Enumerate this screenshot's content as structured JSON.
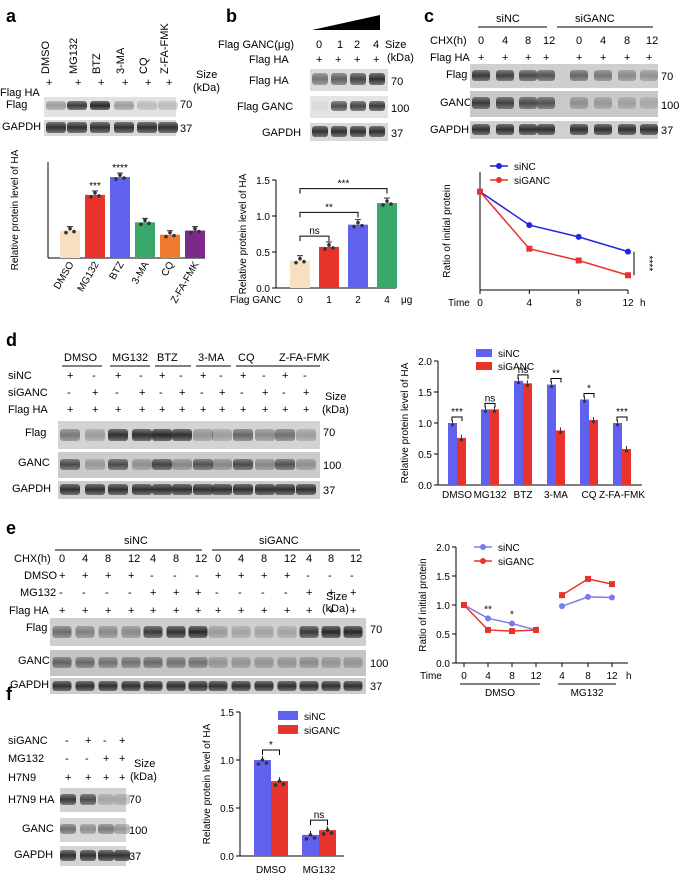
{
  "panel_labels": {
    "a": "a",
    "b": "b",
    "c": "c",
    "d": "d",
    "e": "e",
    "f": "f"
  },
  "common": {
    "flag_ha": "Flag HA",
    "flag": "Flag",
    "gapdh": "GAPDH",
    "ganc": "GANC",
    "size": "Size",
    "kda": "(kDa)",
    "plus": "+",
    "minus": "-",
    "mw70": "70",
    "mw100": "100",
    "mw37": "37"
  },
  "panel_a": {
    "lanes": [
      "DMSO",
      "MG132",
      "BTZ",
      "3-MA",
      "CQ",
      "Z-FA-FMK"
    ],
    "chart_data": {
      "type": "bar",
      "categories": [
        "DMSO",
        "MG132",
        "BTZ",
        "3-MA",
        "CQ",
        "Z-FA-FMK"
      ],
      "values": [
        1.0,
        2.3,
        2.95,
        1.3,
        0.85,
        1.0
      ],
      "ylabel": "Relative  protein  level of HA",
      "ylim": [
        0,
        3.5
      ],
      "significance": [
        "",
        "***",
        "****",
        "",
        "",
        ""
      ],
      "colors": [
        "#f7e0c0",
        "#e8332d",
        "#6161f0",
        "#3aa86b",
        "#f07a2e",
        "#7b2a8c"
      ]
    }
  },
  "panel_b": {
    "flag_ganc_ug": "Flag GANC(μg)",
    "doses": [
      "0",
      "1",
      "2",
      "4"
    ],
    "flag_ganc_row": "Flag GANC",
    "chart_data": {
      "type": "bar",
      "categories": [
        "0",
        "1",
        "2",
        "4"
      ],
      "values": [
        0.38,
        0.57,
        0.88,
        1.18
      ],
      "ylabel": "Relative  protein  level of HA",
      "xlabel": "Flag GANC",
      "unit": "μg",
      "ylim": [
        0,
        1.5
      ],
      "yticks": [
        "0.0",
        "0.5",
        "1.0",
        "1.5"
      ],
      "comparisons": [
        "ns",
        "**",
        "***"
      ],
      "colors": [
        "#f7e0c0",
        "#e8332d",
        "#6161f0",
        "#3aa86b"
      ]
    }
  },
  "panel_c": {
    "groups": [
      "siNC",
      "siGANC"
    ],
    "chx": "CHX(h)",
    "times": [
      "0",
      "4",
      "8",
      "12",
      "0",
      "4",
      "8",
      "12"
    ],
    "chart_data": {
      "type": "line",
      "x": [
        0,
        4,
        8,
        12
      ],
      "series": [
        {
          "name": "siNC",
          "values": [
            1.0,
            0.66,
            0.54,
            0.39
          ],
          "color": "#2323e0"
        },
        {
          "name": "siGANC",
          "values": [
            1.0,
            0.42,
            0.3,
            0.15
          ],
          "color": "#e8332d"
        }
      ],
      "ylabel": "Ratio of initial protein",
      "xlabel": "Time",
      "xunit": "h",
      "xlim": [
        0,
        12
      ],
      "ylim": [
        0,
        1.2
      ],
      "significance": "****"
    }
  },
  "panel_d": {
    "groups": [
      "DMSO",
      "MG132",
      "BTZ",
      "3-MA",
      "CQ",
      "Z-FA-FMK"
    ],
    "sinc": "siNC",
    "siganc": "siGANC",
    "chart_data": {
      "type": "bar",
      "categories": [
        "DMSO",
        "MG132",
        "BTZ",
        "3-MA",
        "CQ",
        "Z-FA-FMK"
      ],
      "series": [
        {
          "name": "siNC",
          "values": [
            1.0,
            1.22,
            1.68,
            1.62,
            1.38,
            1.0
          ],
          "color": "#6161f0"
        },
        {
          "name": "siGANC",
          "values": [
            0.76,
            1.22,
            1.64,
            0.88,
            1.05,
            0.58
          ],
          "color": "#e8332d"
        }
      ],
      "ylabel": "Relative  protein  level of HA",
      "ylim": [
        0,
        2.0
      ],
      "yticks": [
        "0.0",
        "0.5",
        "1.0",
        "1.5",
        "2.0"
      ],
      "significance": [
        "***",
        "ns",
        "ns",
        "**",
        "*",
        "***"
      ]
    }
  },
  "panel_e": {
    "groups": [
      "siNC",
      "siGANC"
    ],
    "chx": "CHX(h)",
    "times": [
      "0",
      "4",
      "8",
      "12",
      "4",
      "8",
      "12",
      "0",
      "4",
      "8",
      "12",
      "4",
      "8",
      "12"
    ],
    "dmso": "DMSO",
    "mg132": "MG132",
    "chart_data": {
      "type": "line",
      "x_labels": [
        "0",
        "4",
        "8",
        "12",
        "4",
        "8",
        "12"
      ],
      "groups": [
        "DMSO",
        "MG132"
      ],
      "series": [
        {
          "name": "siNC",
          "values": [
            1.0,
            0.77,
            0.68,
            0.57,
            0.98,
            1.14,
            1.13
          ],
          "color": "#7b7bf0"
        },
        {
          "name": "siGANC",
          "values": [
            1.0,
            0.57,
            0.55,
            0.57,
            1.17,
            1.45,
            1.36
          ],
          "color": "#e8332d"
        }
      ],
      "ylabel": "Ratio of initial protein",
      "xlabel": "Time",
      "xunit": "h",
      "ylim": [
        0,
        2.0
      ],
      "yticks": [
        "0.0",
        "0.5",
        "1.0",
        "1.5",
        "2.0"
      ],
      "significance": [
        "",
        "**",
        "*",
        "",
        "",
        "",
        ""
      ]
    }
  },
  "panel_f": {
    "siganc": "siGANC",
    "mg132": "MG132",
    "h7n9": "H7N9",
    "h7n9_ha": "H7N9 HA",
    "chart_data": {
      "type": "bar",
      "categories": [
        "DMSO",
        "MG132"
      ],
      "series": [
        {
          "name": "siNC",
          "values": [
            1.0,
            0.22
          ],
          "color": "#6161f0"
        },
        {
          "name": "siGANC",
          "values": [
            0.78,
            0.27
          ],
          "color": "#e8332d"
        }
      ],
      "ylabel": "Relative  protein  level of HA",
      "ylim": [
        0,
        1.5
      ],
      "yticks": [
        "0.0",
        "0.5",
        "1.0",
        "1.5"
      ],
      "significance": [
        "*",
        "ns"
      ]
    }
  }
}
